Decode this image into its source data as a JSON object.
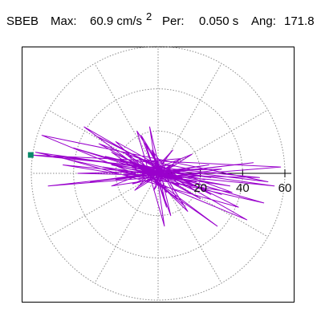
{
  "header": {
    "station": "SBEB",
    "max_label": "Max:",
    "max_value": "60.9 cm/s",
    "max_exp": "2",
    "per_label": "Per:",
    "per_value": "0.050 s",
    "ang_label": "Ang:",
    "ang_value": "171.8"
  },
  "colors": {
    "trace": "#9900cc",
    "marker": "#0a8a6a",
    "grid": "#8a8a8a",
    "frame": "#000000",
    "axis": "#000000"
  },
  "chart_data": {
    "type": "polar-particle-motion",
    "radial_max": 60.9,
    "rings": [
      20,
      40,
      60
    ],
    "radial_tick_labels": [
      "20",
      "40",
      "60"
    ],
    "peak": {
      "value": 60.9,
      "angle_deg": 171.8
    },
    "trace_xy": [
      [
        0,
        0
      ],
      [
        3,
        -2
      ],
      [
        -6,
        3
      ],
      [
        8,
        4
      ],
      [
        -12,
        -5
      ],
      [
        15,
        2
      ],
      [
        -9,
        7
      ],
      [
        4,
        -9
      ],
      [
        -3,
        11
      ],
      [
        10,
        -6
      ],
      [
        -18,
        6
      ],
      [
        22,
        -3
      ],
      [
        -25,
        8
      ],
      [
        30,
        -10
      ],
      [
        -40,
        12
      ],
      [
        50,
        -14
      ],
      [
        -58,
        10
      ],
      [
        55,
        -6
      ],
      [
        -45,
        4
      ],
      [
        35,
        -9
      ],
      [
        -28,
        14
      ],
      [
        20,
        -12
      ],
      [
        -15,
        9
      ],
      [
        12,
        -15
      ],
      [
        -8,
        18
      ],
      [
        6,
        -20
      ],
      [
        -4,
        22
      ],
      [
        3,
        -25
      ],
      [
        -10,
        20
      ],
      [
        14,
        -18
      ],
      [
        -20,
        15
      ],
      [
        25,
        -10
      ],
      [
        -30,
        18
      ],
      [
        38,
        -16
      ],
      [
        -48,
        8
      ],
      [
        52,
        -4
      ],
      [
        -55,
        18
      ],
      [
        42,
        -22
      ],
      [
        -35,
        22
      ],
      [
        28,
        -25
      ],
      [
        -22,
        10
      ],
      [
        17,
        -8
      ],
      [
        -13,
        6
      ],
      [
        9,
        -12
      ],
      [
        -6,
        14
      ],
      [
        4,
        -16
      ],
      [
        -2,
        10
      ],
      [
        1,
        -6
      ],
      [
        -8,
        3
      ],
      [
        12,
        -2
      ],
      [
        -16,
        0
      ],
      [
        18,
        2
      ],
      [
        -20,
        -3
      ],
      [
        24,
        4
      ],
      [
        -32,
        -4
      ],
      [
        45,
        5
      ],
      [
        -52,
        -6
      ],
      [
        58,
        3
      ],
      [
        -60.3,
        8.7
      ],
      [
        48,
        -2
      ],
      [
        -38,
        0
      ],
      [
        30,
        2
      ],
      [
        -22,
        -6
      ],
      [
        16,
        9
      ],
      [
        -11,
        -8
      ],
      [
        7,
        11
      ],
      [
        -5,
        -4
      ],
      [
        3,
        6
      ],
      [
        -2,
        -8
      ],
      [
        6,
        4
      ],
      [
        -9,
        -6
      ],
      [
        11,
        7
      ],
      [
        -14,
        5
      ],
      [
        16,
        -4
      ],
      [
        -18,
        3
      ],
      [
        20,
        -5
      ],
      [
        -22,
        4
      ],
      [
        25,
        -2
      ],
      [
        -30,
        6
      ],
      [
        34,
        -6
      ],
      [
        -26,
        3
      ],
      [
        18,
        -4
      ],
      [
        -12,
        2
      ],
      [
        8,
        -3
      ],
      [
        -5,
        2
      ],
      [
        3,
        -1
      ],
      [
        -2,
        1
      ],
      [
        1,
        0
      ]
    ]
  }
}
